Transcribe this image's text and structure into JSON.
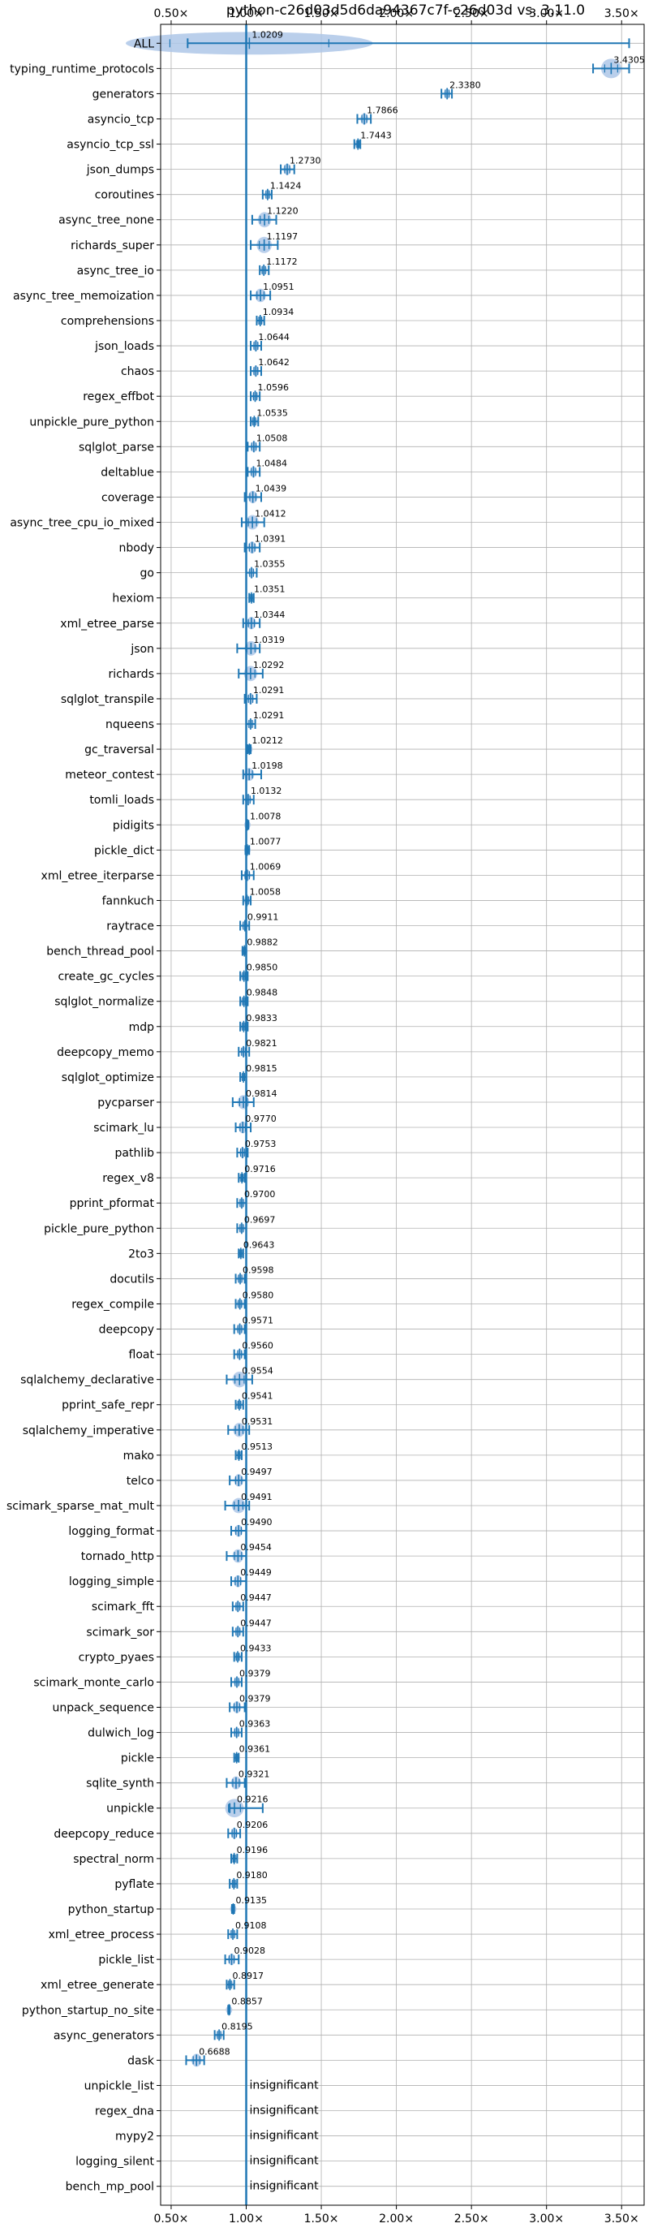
{
  "chart_data": {
    "type": "box-violin",
    "title": "python-c26d03d5d6da94367c7f-c26d03d vs. 3.11.0",
    "xlim": [
      0.43,
      3.65
    ],
    "x_ticks": [
      0.5,
      1.0,
      1.5,
      2.0,
      2.5,
      3.0,
      3.5
    ],
    "x_tick_labels": [
      "0.50×",
      "1.00×",
      "1.50×",
      "2.00×",
      "2.50×",
      "3.00×",
      "3.50×"
    ],
    "baseline": 1.0,
    "grid": true,
    "colors": {
      "mark": "#1f77b4",
      "violin": "#aec7e8",
      "grid": "#b0b0b0"
    },
    "benchmarks": [
      {
        "name": "ALL",
        "value": 1.0209,
        "label": "1.0209",
        "low": 0.61,
        "high": 3.55
      },
      {
        "name": "typing_runtime_protocols",
        "value": 3.4305,
        "label": "3.4305",
        "low": 3.31,
        "high": 3.55
      },
      {
        "name": "generators",
        "value": 2.338,
        "label": "2.3380",
        "low": 2.3,
        "high": 2.37
      },
      {
        "name": "asyncio_tcp",
        "value": 1.7866,
        "label": "1.7866",
        "low": 1.74,
        "high": 1.83
      },
      {
        "name": "asyncio_tcp_ssl",
        "value": 1.7443,
        "label": "1.7443",
        "low": 1.72,
        "high": 1.76
      },
      {
        "name": "json_dumps",
        "value": 1.273,
        "label": "1.2730",
        "low": 1.23,
        "high": 1.32
      },
      {
        "name": "coroutines",
        "value": 1.1424,
        "label": "1.1424",
        "low": 1.11,
        "high": 1.17
      },
      {
        "name": "async_tree_none",
        "value": 1.122,
        "label": "1.1220",
        "low": 1.04,
        "high": 1.2
      },
      {
        "name": "richards_super",
        "value": 1.1197,
        "label": "1.1197",
        "low": 1.03,
        "high": 1.21
      },
      {
        "name": "async_tree_io",
        "value": 1.1172,
        "label": "1.1172",
        "low": 1.09,
        "high": 1.15
      },
      {
        "name": "async_tree_memoization",
        "value": 1.0951,
        "label": "1.0951",
        "low": 1.03,
        "high": 1.16
      },
      {
        "name": "comprehensions",
        "value": 1.0934,
        "label": "1.0934",
        "low": 1.07,
        "high": 1.12
      },
      {
        "name": "json_loads",
        "value": 1.0644,
        "label": "1.0644",
        "low": 1.03,
        "high": 1.1
      },
      {
        "name": "chaos",
        "value": 1.0642,
        "label": "1.0642",
        "low": 1.03,
        "high": 1.1
      },
      {
        "name": "regex_effbot",
        "value": 1.0596,
        "label": "1.0596",
        "low": 1.03,
        "high": 1.09
      },
      {
        "name": "unpickle_pure_python",
        "value": 1.0535,
        "label": "1.0535",
        "low": 1.03,
        "high": 1.08
      },
      {
        "name": "sqlglot_parse",
        "value": 1.0508,
        "label": "1.0508",
        "low": 1.01,
        "high": 1.09
      },
      {
        "name": "deltablue",
        "value": 1.0484,
        "label": "1.0484",
        "low": 1.01,
        "high": 1.09
      },
      {
        "name": "coverage",
        "value": 1.0439,
        "label": "1.0439",
        "low": 0.99,
        "high": 1.1
      },
      {
        "name": "async_tree_cpu_io_mixed",
        "value": 1.0412,
        "label": "1.0412",
        "low": 0.97,
        "high": 1.12
      },
      {
        "name": "nbody",
        "value": 1.0391,
        "label": "1.0391",
        "low": 0.99,
        "high": 1.09
      },
      {
        "name": "go",
        "value": 1.0355,
        "label": "1.0355",
        "low": 1.0,
        "high": 1.07
      },
      {
        "name": "hexiom",
        "value": 1.0351,
        "label": "1.0351",
        "low": 1.02,
        "high": 1.05
      },
      {
        "name": "xml_etree_parse",
        "value": 1.0344,
        "label": "1.0344",
        "low": 0.98,
        "high": 1.09
      },
      {
        "name": "json",
        "value": 1.0319,
        "label": "1.0319",
        "low": 0.94,
        "high": 1.09
      },
      {
        "name": "richards",
        "value": 1.0292,
        "label": "1.0292",
        "low": 0.95,
        "high": 1.11
      },
      {
        "name": "sqlglot_transpile",
        "value": 1.0291,
        "label": "1.0291",
        "low": 0.99,
        "high": 1.07
      },
      {
        "name": "nqueens",
        "value": 1.0291,
        "label": "1.0291",
        "low": 1.0,
        "high": 1.06
      },
      {
        "name": "gc_traversal",
        "value": 1.0212,
        "label": "1.0212",
        "low": 1.01,
        "high": 1.03
      },
      {
        "name": "meteor_contest",
        "value": 1.0198,
        "label": "1.0198",
        "low": 0.98,
        "high": 1.1
      },
      {
        "name": "tomli_loads",
        "value": 1.0132,
        "label": "1.0132",
        "low": 0.98,
        "high": 1.05
      },
      {
        "name": "pidigits",
        "value": 1.0078,
        "label": "1.0078",
        "low": 1.0,
        "high": 1.015
      },
      {
        "name": "pickle_dict",
        "value": 1.0077,
        "label": "1.0077",
        "low": 0.995,
        "high": 1.02
      },
      {
        "name": "xml_etree_iterparse",
        "value": 1.0069,
        "label": "1.0069",
        "low": 0.97,
        "high": 1.05
      },
      {
        "name": "fannkuch",
        "value": 1.0058,
        "label": "1.0058",
        "low": 0.98,
        "high": 1.03
      },
      {
        "name": "raytrace",
        "value": 0.9911,
        "label": "0.9911",
        "low": 0.96,
        "high": 1.02
      },
      {
        "name": "bench_thread_pool",
        "value": 0.9882,
        "label": "0.9882",
        "low": 0.975,
        "high": 1.0
      },
      {
        "name": "create_gc_cycles",
        "value": 0.985,
        "label": "0.9850",
        "low": 0.96,
        "high": 1.01
      },
      {
        "name": "sqlglot_normalize",
        "value": 0.9848,
        "label": "0.9848",
        "low": 0.96,
        "high": 1.01
      },
      {
        "name": "mdp",
        "value": 0.9833,
        "label": "0.9833",
        "low": 0.96,
        "high": 1.01
      },
      {
        "name": "deepcopy_memo",
        "value": 0.9821,
        "label": "0.9821",
        "low": 0.95,
        "high": 1.02
      },
      {
        "name": "sqlglot_optimize",
        "value": 0.9815,
        "label": "0.9815",
        "low": 0.96,
        "high": 1.0
      },
      {
        "name": "pycparser",
        "value": 0.9814,
        "label": "0.9814",
        "low": 0.91,
        "high": 1.05
      },
      {
        "name": "scimark_lu",
        "value": 0.977,
        "label": "0.9770",
        "low": 0.93,
        "high": 1.03
      },
      {
        "name": "pathlib",
        "value": 0.9753,
        "label": "0.9753",
        "low": 0.94,
        "high": 1.01
      },
      {
        "name": "regex_v8",
        "value": 0.9716,
        "label": "0.9716",
        "low": 0.95,
        "high": 0.99
      },
      {
        "name": "pprint_pformat",
        "value": 0.97,
        "label": "0.9700",
        "low": 0.94,
        "high": 1.0
      },
      {
        "name": "pickle_pure_python",
        "value": 0.9697,
        "label": "0.9697",
        "low": 0.94,
        "high": 1.0
      },
      {
        "name": "2to3",
        "value": 0.9643,
        "label": "0.9643",
        "low": 0.95,
        "high": 0.98
      },
      {
        "name": "docutils",
        "value": 0.9598,
        "label": "0.9598",
        "low": 0.93,
        "high": 0.99
      },
      {
        "name": "regex_compile",
        "value": 0.958,
        "label": "0.9580",
        "low": 0.93,
        "high": 0.99
      },
      {
        "name": "deepcopy",
        "value": 0.9571,
        "label": "0.9571",
        "low": 0.92,
        "high": 0.99
      },
      {
        "name": "float",
        "value": 0.956,
        "label": "0.9560",
        "low": 0.92,
        "high": 0.99
      },
      {
        "name": "sqlalchemy_declarative",
        "value": 0.9554,
        "label": "0.9554",
        "low": 0.87,
        "high": 1.04
      },
      {
        "name": "pprint_safe_repr",
        "value": 0.9541,
        "label": "0.9541",
        "low": 0.93,
        "high": 0.98
      },
      {
        "name": "sqlalchemy_imperative",
        "value": 0.9531,
        "label": "0.9531",
        "low": 0.88,
        "high": 1.02
      },
      {
        "name": "mako",
        "value": 0.9513,
        "label": "0.9513",
        "low": 0.93,
        "high": 0.97
      },
      {
        "name": "telco",
        "value": 0.9497,
        "label": "0.9497",
        "low": 0.89,
        "high": 1.0
      },
      {
        "name": "scimark_sparse_mat_mult",
        "value": 0.9491,
        "label": "0.9491",
        "low": 0.86,
        "high": 1.02
      },
      {
        "name": "logging_format",
        "value": 0.949,
        "label": "0.9490",
        "low": 0.9,
        "high": 1.0
      },
      {
        "name": "tornado_http",
        "value": 0.9454,
        "label": "0.9454",
        "low": 0.87,
        "high": 1.0
      },
      {
        "name": "logging_simple",
        "value": 0.9449,
        "label": "0.9449",
        "low": 0.9,
        "high": 1.0
      },
      {
        "name": "scimark_fft",
        "value": 0.9447,
        "label": "0.9447",
        "low": 0.91,
        "high": 0.98
      },
      {
        "name": "scimark_sor",
        "value": 0.9447,
        "label": "0.9447",
        "low": 0.91,
        "high": 0.98
      },
      {
        "name": "crypto_pyaes",
        "value": 0.9433,
        "label": "0.9433",
        "low": 0.92,
        "high": 0.97
      },
      {
        "name": "scimark_monte_carlo",
        "value": 0.9379,
        "label": "0.9379",
        "low": 0.9,
        "high": 0.97
      },
      {
        "name": "unpack_sequence",
        "value": 0.9379,
        "label": "0.9379",
        "low": 0.89,
        "high": 0.99
      },
      {
        "name": "dulwich_log",
        "value": 0.9363,
        "label": "0.9363",
        "low": 0.9,
        "high": 0.97
      },
      {
        "name": "pickle",
        "value": 0.9361,
        "label": "0.9361",
        "low": 0.92,
        "high": 0.95
      },
      {
        "name": "sqlite_synth",
        "value": 0.9321,
        "label": "0.9321",
        "low": 0.87,
        "high": 0.99
      },
      {
        "name": "unpickle",
        "value": 0.9216,
        "label": "0.9216",
        "low": 0.89,
        "high": 1.11
      },
      {
        "name": "deepcopy_reduce",
        "value": 0.9206,
        "label": "0.9206",
        "low": 0.88,
        "high": 0.96
      },
      {
        "name": "spectral_norm",
        "value": 0.9196,
        "label": "0.9196",
        "low": 0.9,
        "high": 0.94
      },
      {
        "name": "pyflate",
        "value": 0.918,
        "label": "0.9180",
        "low": 0.89,
        "high": 0.94
      },
      {
        "name": "python_startup",
        "value": 0.9135,
        "label": "0.9135",
        "low": 0.905,
        "high": 0.92
      },
      {
        "name": "xml_etree_process",
        "value": 0.9108,
        "label": "0.9108",
        "low": 0.88,
        "high": 0.94
      },
      {
        "name": "pickle_list",
        "value": 0.9028,
        "label": "0.9028",
        "low": 0.86,
        "high": 0.95
      },
      {
        "name": "xml_etree_generate",
        "value": 0.8917,
        "label": "0.8917",
        "low": 0.87,
        "high": 0.92
      },
      {
        "name": "python_startup_no_site",
        "value": 0.8857,
        "label": "0.8857",
        "low": 0.88,
        "high": 0.89
      },
      {
        "name": "async_generators",
        "value": 0.8195,
        "label": "0.8195",
        "low": 0.79,
        "high": 0.85
      },
      {
        "name": "dask",
        "value": 0.6688,
        "label": "0.6688",
        "low": 0.6,
        "high": 0.72
      },
      {
        "name": "unpickle_list",
        "insignificant": true,
        "label": "insignificant"
      },
      {
        "name": "regex_dna",
        "insignificant": true,
        "label": "insignificant"
      },
      {
        "name": "mypy2",
        "insignificant": true,
        "label": "insignificant"
      },
      {
        "name": "logging_silent",
        "insignificant": true,
        "label": "insignificant"
      },
      {
        "name": "bench_mp_pool",
        "insignificant": true,
        "label": "insignificant"
      }
    ]
  }
}
